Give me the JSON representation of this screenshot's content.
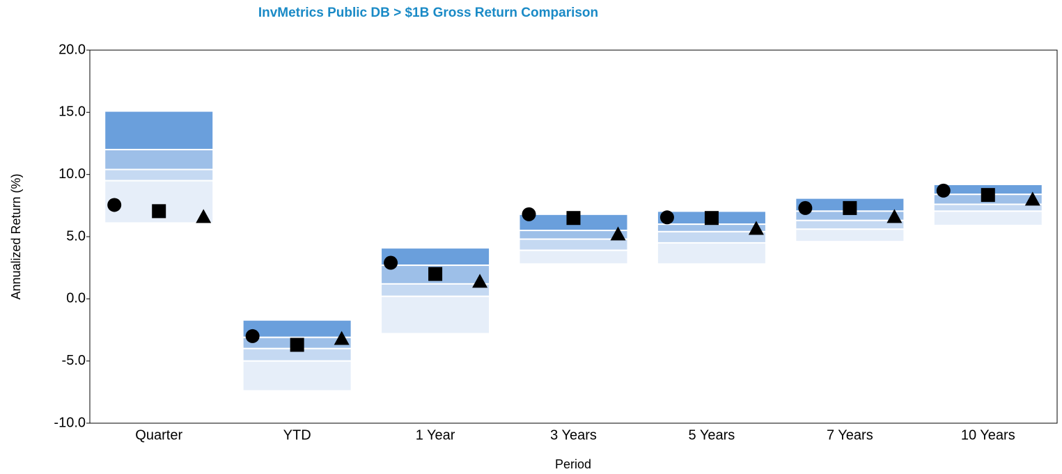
{
  "chart_data": {
    "type": "floating-range",
    "title": "InvMetrics Public DB > $1B Gross Return Comparison",
    "y_label": "Annualized Return (%)",
    "x_label": "Period",
    "categories": [
      "Quarter",
      "YTD",
      "1 Year",
      "3 Years",
      "5 Years",
      "7 Years",
      "10 Years"
    ],
    "boundaries": [
      [
        15.1,
        -1.7,
        4.1,
        6.8,
        7.05,
        8.1,
        9.2
      ],
      [
        12.0,
        -3.1,
        2.7,
        5.5,
        6.0,
        7.05,
        8.4
      ],
      [
        10.4,
        -4.0,
        1.2,
        4.8,
        5.4,
        6.3,
        7.6
      ],
      [
        9.5,
        -5.0,
        0.2,
        3.9,
        4.5,
        5.6,
        7.05
      ],
      [
        6.1,
        -7.4,
        -2.8,
        2.8,
        2.8,
        4.6,
        5.9
      ]
    ],
    "band_colors": [
      "#6a9fdc",
      "#9dbfe8",
      "#c5d9f2",
      "#e6eef9"
    ],
    "series": [
      {
        "marker": "circle",
        "color": "#000000",
        "values": [
          7.55,
          -3.0,
          2.9,
          6.8,
          6.55,
          7.3,
          8.7
        ]
      },
      {
        "marker": "square",
        "color": "#000000",
        "values": [
          7.05,
          -3.7,
          2.0,
          6.5,
          6.5,
          7.3,
          8.35
        ]
      },
      {
        "marker": "triangle",
        "color": "#000000",
        "values": [
          6.6,
          -3.2,
          1.4,
          5.2,
          5.65,
          6.6,
          8.0
        ]
      }
    ],
    "ylim": [
      -10,
      20
    ],
    "yticks": [
      {
        "value": -10,
        "label": "-10.0"
      },
      {
        "value": -5,
        "label": "-5.0"
      },
      {
        "value": 0,
        "label": "0.0"
      },
      {
        "value": 5,
        "label": "5.0"
      },
      {
        "value": 10,
        "label": "10.0"
      },
      {
        "value": 15,
        "label": "15.0"
      },
      {
        "value": 20,
        "label": "20.0"
      }
    ]
  }
}
